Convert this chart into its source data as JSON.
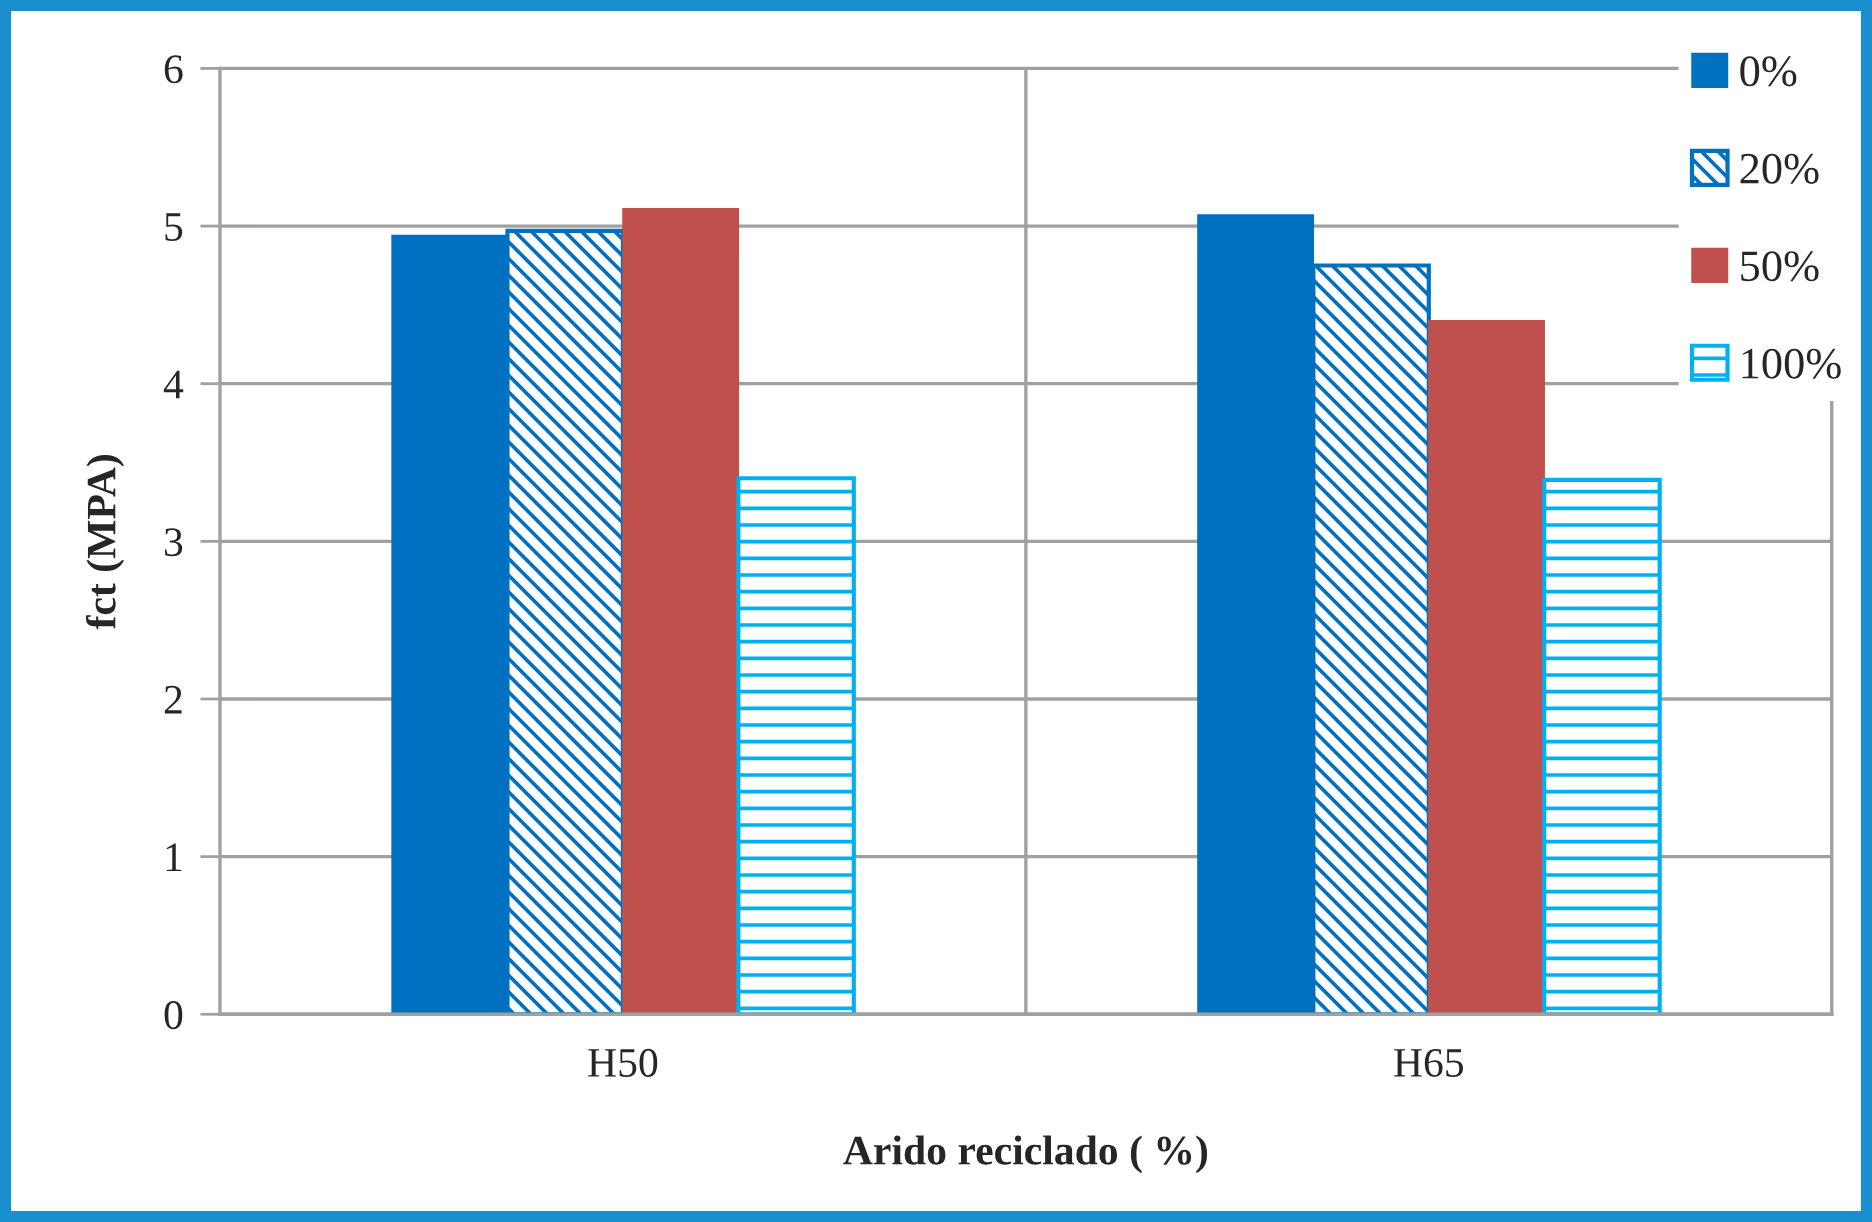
{
  "chart_data": {
    "type": "bar",
    "xlabel": "Arido reciclado ( %)",
    "ylabel": "fct (MPA)",
    "categories": [
      "H50",
      "H65"
    ],
    "series": [
      {
        "name": "0%",
        "color": "#0070c0",
        "values": [
          4.94,
          5.07
        ]
      },
      {
        "name": "20%",
        "color": "#0070c0",
        "values": [
          4.97,
          4.75
        ]
      },
      {
        "name": "50%",
        "color": "#c0504d",
        "values": [
          5.11,
          4.4
        ]
      },
      {
        "name": "100%",
        "color": "#00b0f0",
        "values": [
          3.4,
          3.39
        ]
      }
    ],
    "ylim": [
      0,
      6
    ],
    "yticks": [
      0,
      1,
      2,
      3,
      4,
      5,
      6
    ],
    "grid": true,
    "legend": "top right"
  }
}
